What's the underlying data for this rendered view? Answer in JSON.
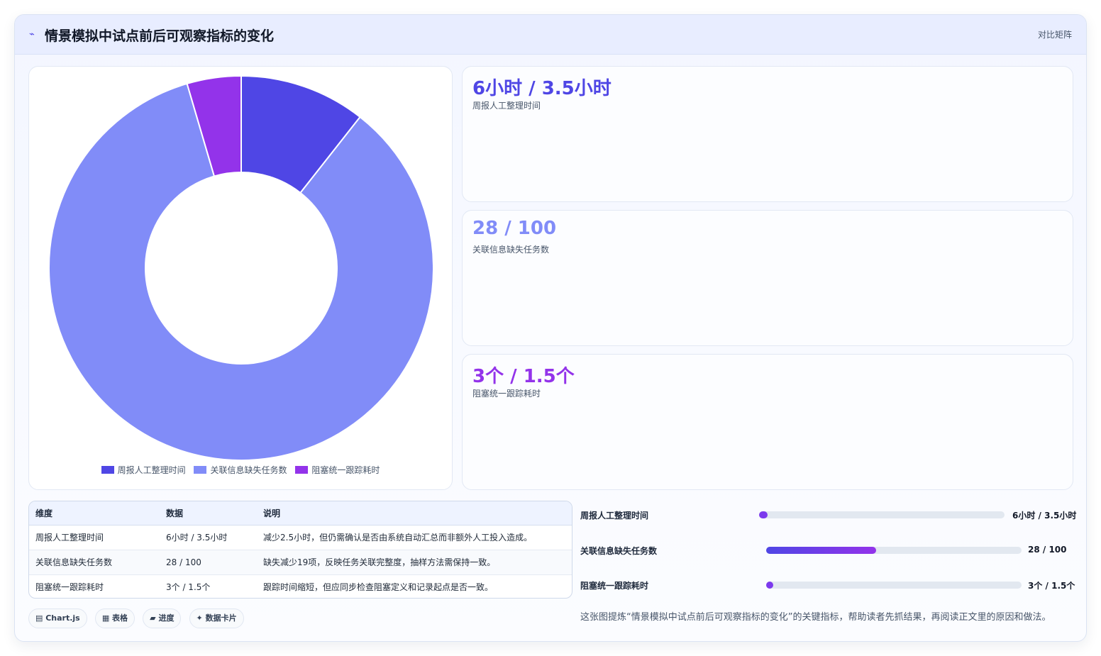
{
  "header": {
    "icon": "sparkline-icon",
    "icon_glyph": "⌁",
    "title": "情景模拟中试点前后可观察指标的变化",
    "mode_label": "对比矩阵"
  },
  "chart_data": {
    "type": "doughnut",
    "categories": [
      "周报人工整理时间",
      "关联信息缺失任务数",
      "阻塞统一跟踪耗时"
    ],
    "values": [
      3.5,
      28,
      1.5
    ],
    "colors": [
      "#4f46e5",
      "#818cf8",
      "#9333ea"
    ],
    "legend_position": "bottom",
    "title": ""
  },
  "cards": [
    {
      "value": "6小时 / 3.5小时",
      "label": "周报人工整理时间",
      "color": "#4f46e5"
    },
    {
      "value": "28 / 100",
      "label": "关联信息缺失任务数",
      "color": "#818cf8"
    },
    {
      "value": "3个 / 1.5个",
      "label": "阻塞统一跟踪耗时",
      "color": "#9333ea"
    }
  ],
  "table": {
    "headers": [
      "维度",
      "数据",
      "说明"
    ],
    "rows": [
      [
        "周报人工整理时间",
        "6小时 / 3.5小时",
        "减少2.5小时，但仍需确认是否由系统自动汇总而非额外人工投入造成。"
      ],
      [
        "关联信息缺失任务数",
        "28 / 100",
        "缺失减少19项，反映任务关联完整度，抽样方法需保持一致。"
      ],
      [
        "阻塞统一跟踪耗时",
        "3个 / 1.5个",
        "跟踪时间缩短，但应同步检查阻塞定义和记录起点是否一致。"
      ]
    ]
  },
  "chips": [
    "▤ Chart.js",
    "▦ 表格",
    "▰ 进度",
    "✦ 数据卡片"
  ],
  "progress": [
    {
      "label": "周报人工整理时间",
      "value": "6小时 / 3.5小时",
      "fraction": 0.035
    },
    {
      "label": "关联信息缺失任务数",
      "value": "28 / 100",
      "fraction": 0.43
    },
    {
      "label": "阻塞统一跟踪耗时",
      "value": "3个 / 1.5个",
      "fraction": 0.025
    }
  ],
  "note": "这张图提炼“情景模拟中试点前后可观察指标的变化”的关键指标，帮助读者先抓结果，再阅读正文里的原因和做法。"
}
